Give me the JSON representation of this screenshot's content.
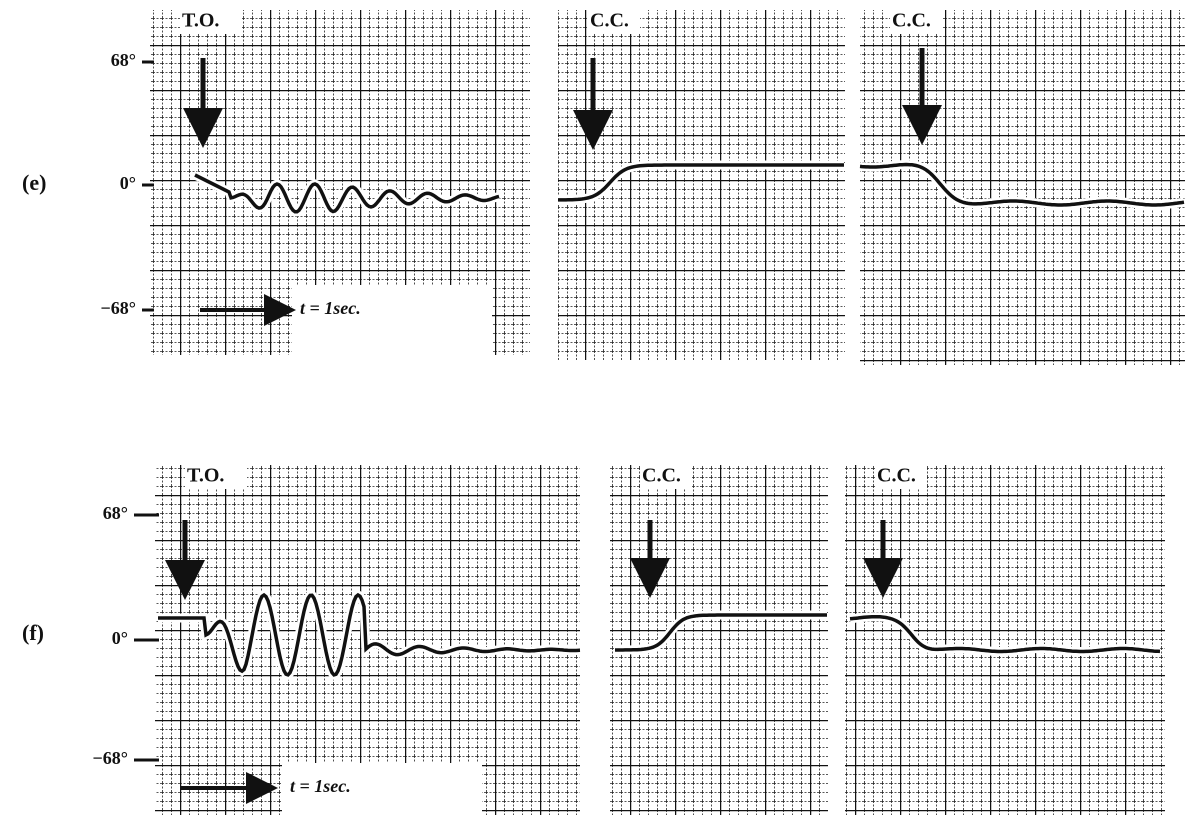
{
  "rows": [
    {
      "label": "(e)",
      "yticks": [
        "68°",
        "0°",
        "−68°"
      ],
      "panels": [
        "T.O.",
        "C.C.",
        "C.C."
      ],
      "time_label": "t = 1sec."
    },
    {
      "label": "(f)",
      "yticks": [
        "68°",
        "0°",
        "−68°"
      ],
      "panels": [
        "T.O.",
        "C.C.",
        "C.C."
      ],
      "time_label": "t = 1sec."
    }
  ]
}
